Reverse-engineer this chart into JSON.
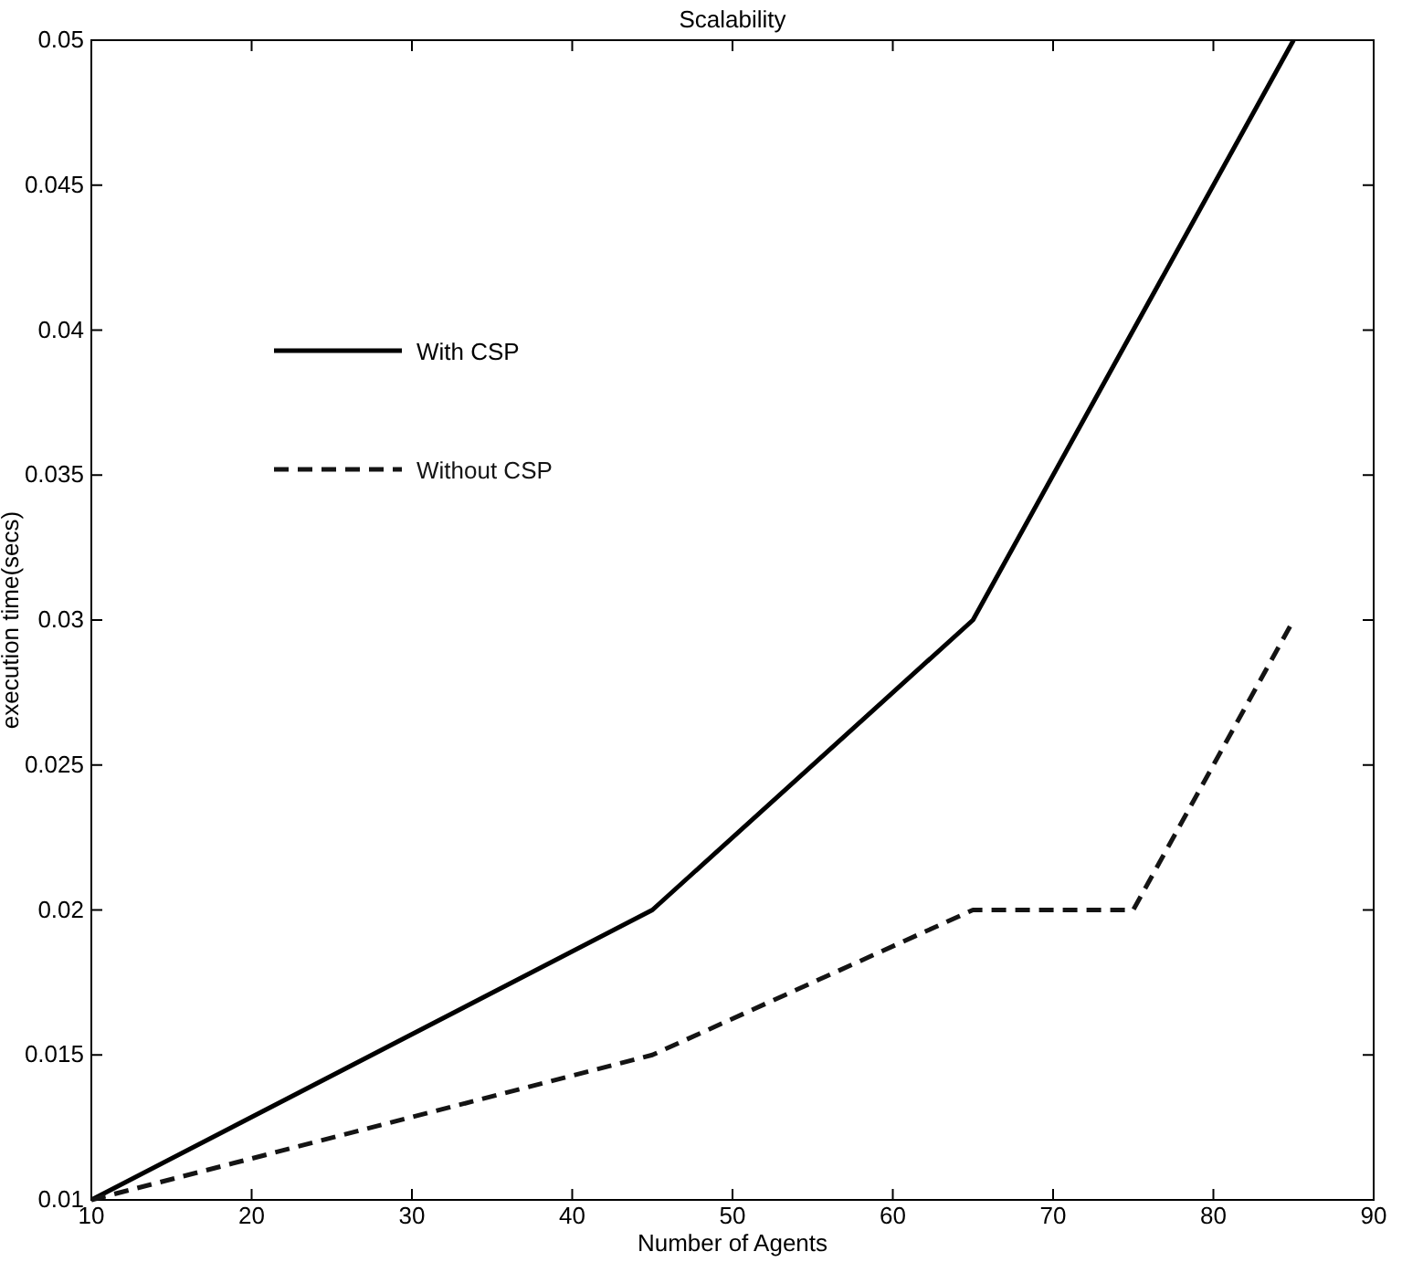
{
  "chart_data": {
    "type": "line",
    "title": "Scalability",
    "xlabel": "Number of Agents",
    "ylabel": "execution time(secs)",
    "xlim": [
      10,
      90
    ],
    "xticks": [
      10,
      20,
      30,
      40,
      50,
      60,
      70,
      80,
      90
    ],
    "ylim": [
      0.01,
      0.05
    ],
    "yticks": [
      0.01,
      0.015,
      0.02,
      0.025,
      0.03,
      0.035,
      0.04,
      0.045,
      0.05
    ],
    "grid": false,
    "legend": "top left",
    "marker": "none",
    "series": [
      {
        "name": "With CSP",
        "color": "#000000",
        "line_style": "solid",
        "x": [
          10,
          45,
          65,
          85
        ],
        "values": [
          0.01,
          0.02,
          0.03,
          0.05
        ]
      },
      {
        "name": "Without CSP",
        "color": "#141414",
        "line_style": "dashed",
        "x": [
          10,
          45,
          65,
          75,
          85
        ],
        "values": [
          0.01,
          0.015,
          0.02,
          0.02,
          0.03
        ]
      }
    ]
  }
}
